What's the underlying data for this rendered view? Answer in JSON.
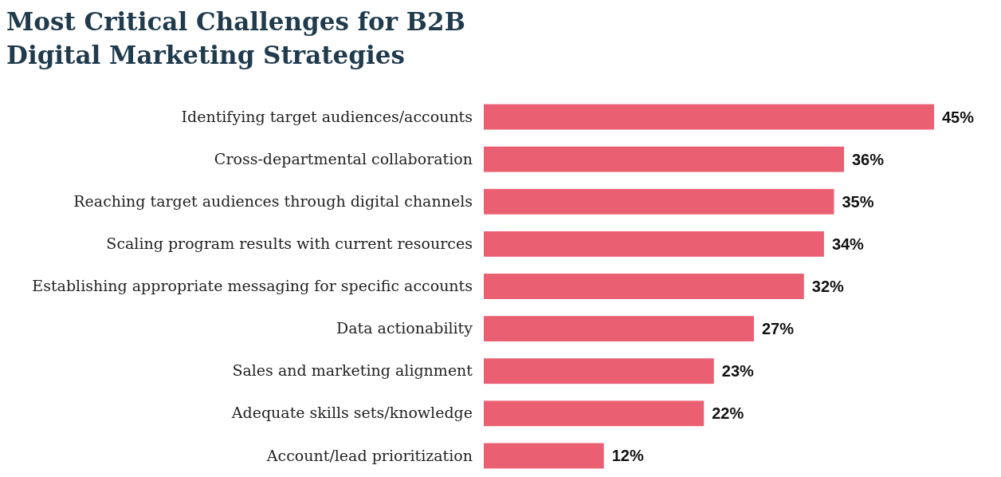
{
  "chart_data": {
    "type": "bar",
    "orientation": "horizontal",
    "title": "Most Critical Challenges for B2B Digital Marketing Strategies",
    "categories": [
      "Identifying target audiences/accounts",
      "Cross-departmental collaboration",
      "Reaching target audiences through digital channels",
      "Scaling program results with current resources",
      "Establishing appropriate messaging for specific accounts",
      "Data actionability",
      "Sales and marketing alignment",
      "Adequate skills sets/knowledge",
      "Account/lead prioritization"
    ],
    "values": [
      45,
      36,
      35,
      34,
      32,
      27,
      23,
      22,
      12
    ],
    "value_labels": [
      "45%",
      "36%",
      "35%",
      "34%",
      "32%",
      "27%",
      "23%",
      "22%",
      "12%"
    ],
    "color": "#ea5f72"
  }
}
